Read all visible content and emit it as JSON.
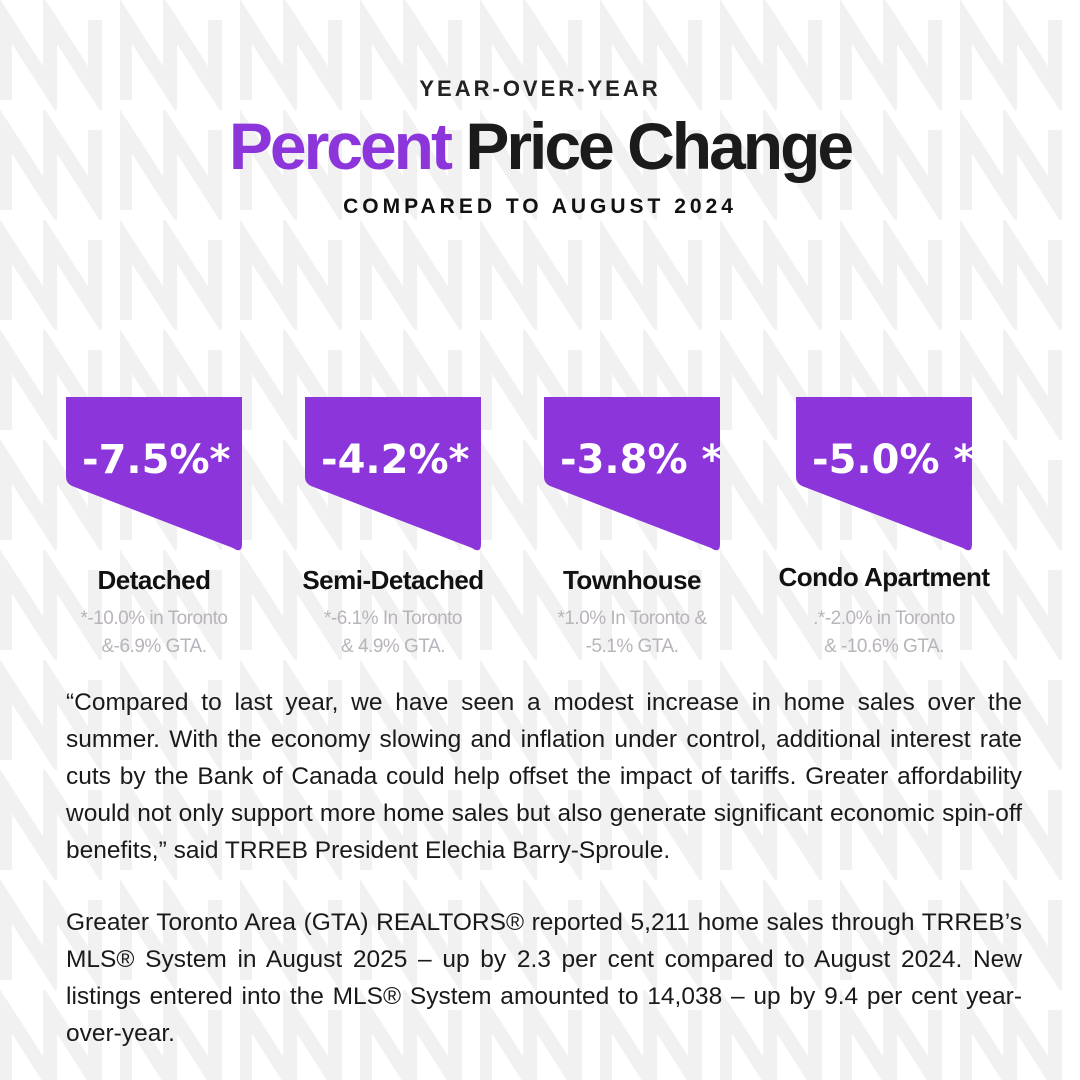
{
  "header": {
    "kicker": "YEAR-OVER-YEAR",
    "title_accent": "Percent",
    "title_rest": "Price Change",
    "subtitle": "COMPARED TO AUGUST 2024"
  },
  "colors": {
    "accent": "#8b35db",
    "text": "#111111",
    "note": "#b9b3bb"
  },
  "cards": [
    {
      "value": "-7.5%*",
      "label": "Detached",
      "note_line1": "*-10.0% in Toronto",
      "note_line2": "&-6.9% GTA."
    },
    {
      "value": "-4.2%*",
      "label": "Semi-Detached",
      "note_line1": "*-6.1%  In Toronto",
      "note_line2": "& 4.9% GTA."
    },
    {
      "value": "-3.8% *",
      "label": "Townhouse",
      "note_line1": "*1.0%   In Toronto &",
      "note_line2": "-5.1%  GTA."
    },
    {
      "value": "-5.0% *",
      "label": "Condo Apartment",
      "note_line1": ".*-2.0% in Toronto",
      "note_line2": "& -10.6% GTA."
    }
  ],
  "body": {
    "quote": "“Compared to last year, we have seen a modest increase in home sales over the summer. With the economy slowing and inflation under control, additional interest rate cuts by the Bank of Canada could help offset the impact of tariffs. Greater affordability would not only support more home sales but also generate significant economic spin-off benefits,” said TRREB President Elechia Barry-Sproule.",
    "stats": " Greater Toronto Area (GTA) REALTORS® reported 5,211 home sales through TRREB’s MLS® System in August 2025 – up by 2.3 per cent compared to August 2024. New listings entered into the MLS® System amounted to 14,038 – up by 9.4 per cent year-over-year."
  }
}
